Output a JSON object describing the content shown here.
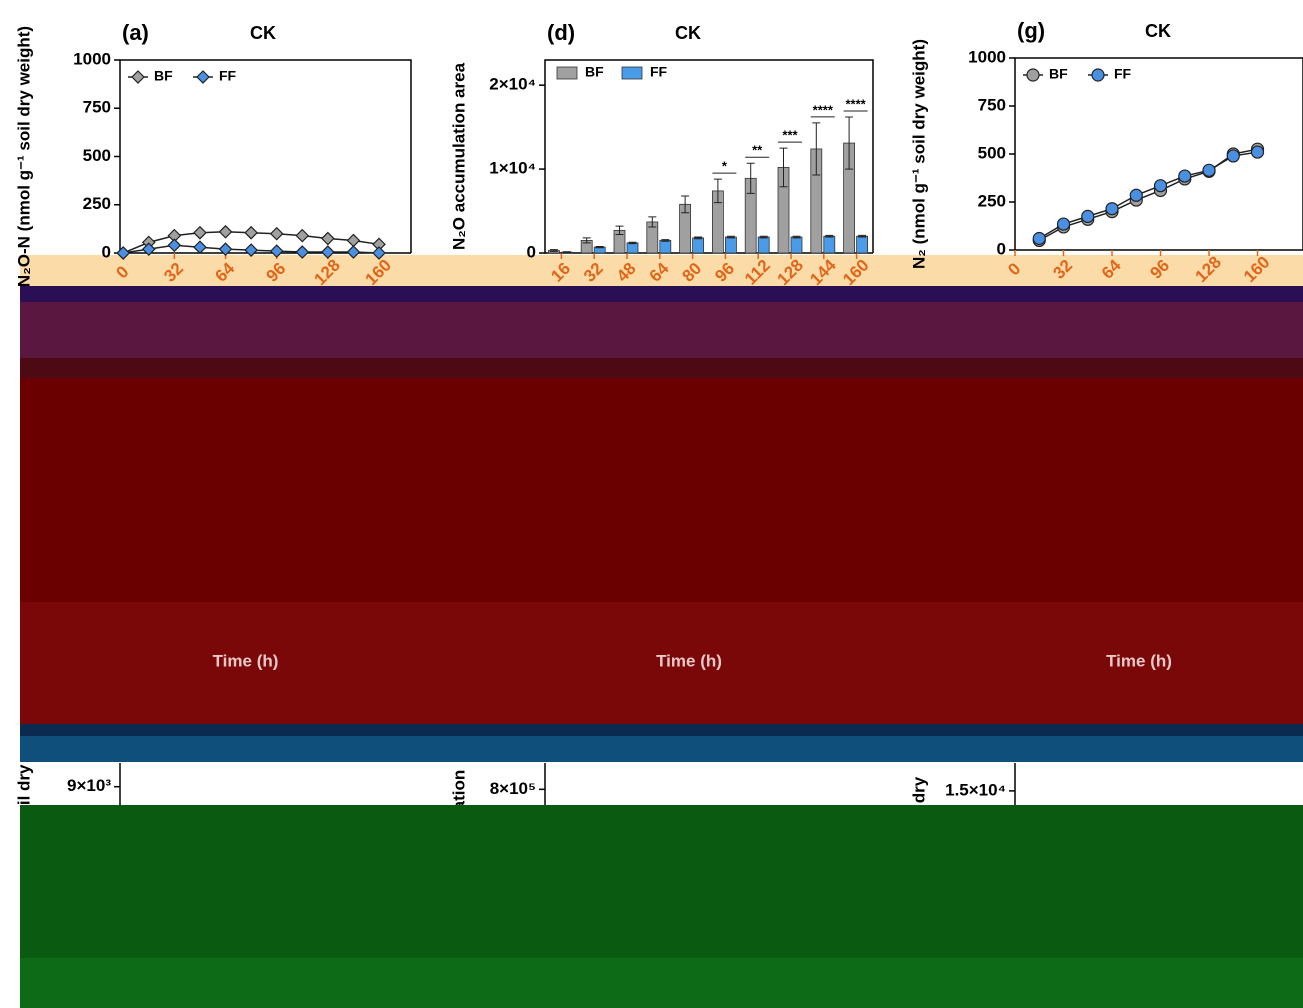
{
  "chart_data": [
    {
      "type": "line",
      "panel": "(a)",
      "title": "CK",
      "ylabel": "N₂O-N (nmol g⁻¹ soil dry weight)",
      "xlabel": "Time (h)",
      "xlim": [
        -2,
        180
      ],
      "xticks": [
        0,
        32,
        64,
        96,
        128,
        160
      ],
      "ylim": [
        0,
        1000
      ],
      "yticks": [
        0,
        250,
        500,
        750,
        1000
      ],
      "x": [
        0,
        16,
        32,
        48,
        64,
        80,
        96,
        112,
        128,
        144,
        160
      ],
      "marker": "diamond",
      "series": [
        {
          "name": "BF",
          "color": "#a0a0a0",
          "values": [
            0,
            55,
            90,
            105,
            110,
            105,
            100,
            90,
            75,
            65,
            45
          ]
        },
        {
          "name": "FF",
          "color": "#4a90e2",
          "values": [
            0,
            20,
            40,
            30,
            20,
            15,
            10,
            5,
            5,
            5,
            0
          ]
        }
      ]
    },
    {
      "type": "bar",
      "panel": "(d)",
      "title": "CK",
      "ylabel": "N₂O accumulation area",
      "xlabel": "Time (h)",
      "ylim": [
        0,
        23000
      ],
      "yticks": [
        0,
        {
          "value": 10000,
          "label": "1×10⁴"
        },
        {
          "value": 20000,
          "label": "2×10⁴"
        }
      ],
      "categories": [
        "16",
        "32",
        "48",
        "64",
        "80",
        "96",
        "112",
        "128",
        "144",
        "160"
      ],
      "series": [
        {
          "name": "BF",
          "color": "#a0a0a0",
          "values": [
            300,
            1500,
            2700,
            3700,
            5800,
            7400,
            8900,
            10200,
            12400,
            13100
          ],
          "errors": [
            100,
            300,
            500,
            600,
            1000,
            1400,
            1800,
            2300,
            3100,
            3100
          ]
        },
        {
          "name": "FF",
          "color": "#4a9be8",
          "values": [
            100,
            700,
            1200,
            1500,
            1800,
            1900,
            1900,
            1900,
            2000,
            2000
          ],
          "errors": [
            50,
            80,
            80,
            100,
            100,
            100,
            100,
            100,
            100,
            100
          ]
        }
      ],
      "significance": [
        {
          "category": "96",
          "label": "*"
        },
        {
          "category": "112",
          "label": "**"
        },
        {
          "category": "128",
          "label": "***"
        },
        {
          "category": "144",
          "label": "****"
        },
        {
          "category": "160",
          "label": "****"
        }
      ]
    },
    {
      "type": "line",
      "panel": "(g)",
      "title": "CK",
      "ylabel": "N₂ (nmol g⁻¹ soil dry weight)",
      "xlabel": "Time (h)",
      "xlim": [
        0,
        190
      ],
      "xticks": [
        0,
        32,
        64,
        96,
        128,
        160
      ],
      "ylim": [
        0,
        1000
      ],
      "yticks": [
        0,
        250,
        500,
        750,
        1000
      ],
      "x": [
        16,
        32,
        48,
        64,
        80,
        96,
        112,
        128,
        144,
        160
      ],
      "marker": "circle",
      "series": [
        {
          "name": "BF",
          "color": "#a0a0a0",
          "values": [
            50,
            120,
            160,
            200,
            260,
            310,
            370,
            410,
            500,
            525
          ]
        },
        {
          "name": "FF",
          "color": "#4a90e2",
          "values": [
            60,
            135,
            175,
            215,
            285,
            335,
            385,
            415,
            490,
            510
          ]
        }
      ]
    },
    {
      "type": "line",
      "ylabel": "oil dry",
      "ylim": [
        0,
        10000
      ],
      "yticks": [
        {
          "value": 9000,
          "label": "9×10³"
        }
      ]
    },
    {
      "type": "bar",
      "ylabel": "ation",
      "ylim": [
        0,
        900000
      ],
      "yticks": [
        {
          "value": 800000,
          "label": "8×10⁵"
        }
      ]
    },
    {
      "type": "line",
      "ylabel": "dry",
      "ylim": [
        0,
        17000
      ],
      "yticks": [
        {
          "value": 15000,
          "label": "1.5×10⁴"
        }
      ]
    }
  ]
}
